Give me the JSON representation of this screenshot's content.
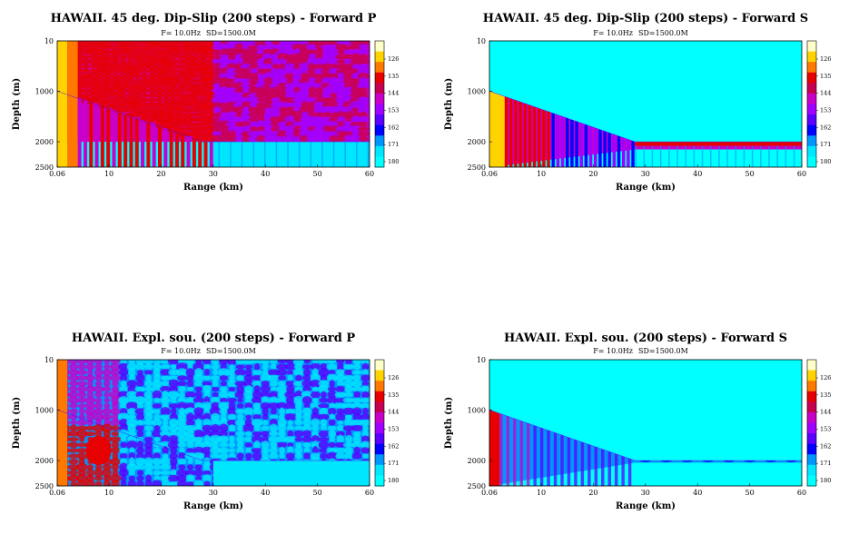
{
  "chart_data": [
    {
      "type": "heatmap",
      "title": "HAWAII. 45 deg. Dip-Slip (200 steps) - Forward P",
      "subtitle_f": "F=   10.0Hz",
      "subtitle_sd": "SD=1500.0M",
      "xlabel": "Range (km)",
      "ylabel": "Depth (m)",
      "xticks": [
        "0.06",
        "10",
        "20",
        "30",
        "40",
        "50",
        "60"
      ],
      "yticks": [
        "10",
        "1000",
        "2000",
        "2500"
      ],
      "xlim": [
        0.06,
        60
      ],
      "ylim": [
        10,
        2500
      ],
      "colorbar_ticks": [
        "126",
        "135",
        "144",
        "153",
        "162",
        "171",
        "180"
      ],
      "field": "P",
      "source": "dip-slip"
    },
    {
      "type": "heatmap",
      "title": "HAWAII. 45 deg. Dip-Slip (200 steps) - Forward S",
      "subtitle_f": "F=   10.0Hz",
      "subtitle_sd": "SD=1500.0M",
      "xlabel": "Range (km)",
      "ylabel": "Depth (m)",
      "xticks": [
        "0.06",
        "10",
        "20",
        "30",
        "40",
        "50",
        "60"
      ],
      "yticks": [
        "10",
        "1000",
        "2000",
        "2500"
      ],
      "xlim": [
        0.06,
        60
      ],
      "ylim": [
        10,
        2500
      ],
      "colorbar_ticks": [
        "126",
        "135",
        "144",
        "153",
        "162",
        "171",
        "180"
      ],
      "field": "S",
      "source": "dip-slip"
    },
    {
      "type": "heatmap",
      "title": "HAWAII. Expl. sou. (200 steps) - Forward P",
      "subtitle_f": "F=   10.0Hz",
      "subtitle_sd": "SD=1500.0M",
      "xlabel": "Range (km)",
      "ylabel": "Depth (m)",
      "xticks": [
        "0.06",
        "10",
        "20",
        "30",
        "40",
        "50",
        "60"
      ],
      "yticks": [
        "10",
        "1000",
        "2000",
        "2500"
      ],
      "xlim": [
        0.06,
        60
      ],
      "ylim": [
        10,
        2500
      ],
      "colorbar_ticks": [
        "126",
        "135",
        "144",
        "153",
        "162",
        "171",
        "180"
      ],
      "field": "P",
      "source": "explosion"
    },
    {
      "type": "heatmap",
      "title": "HAWAII. Expl. sou. (200 steps) - Forward S",
      "subtitle_f": "F=   10.0Hz",
      "subtitle_sd": "SD=1500.0M",
      "xlabel": "Range (km)",
      "ylabel": "Depth (m)",
      "xticks": [
        "0.06",
        "10",
        "20",
        "30",
        "40",
        "50",
        "60"
      ],
      "yticks": [
        "10",
        "1000",
        "2000",
        "2500"
      ],
      "xlim": [
        0.06,
        60
      ],
      "ylim": [
        10,
        2500
      ],
      "colorbar_ticks": [
        "126",
        "135",
        "144",
        "153",
        "162",
        "171",
        "180"
      ],
      "field": "S",
      "source": "explosion"
    }
  ],
  "colormap": [
    "#ffffc8",
    "#ffd200",
    "#ff7800",
    "#e60000",
    "#c80050",
    "#c800c8",
    "#a000ff",
    "#5a00ff",
    "#0000ff",
    "#0096ff",
    "#00e6ff",
    "#00ffff"
  ],
  "background_color": "#00ffff"
}
